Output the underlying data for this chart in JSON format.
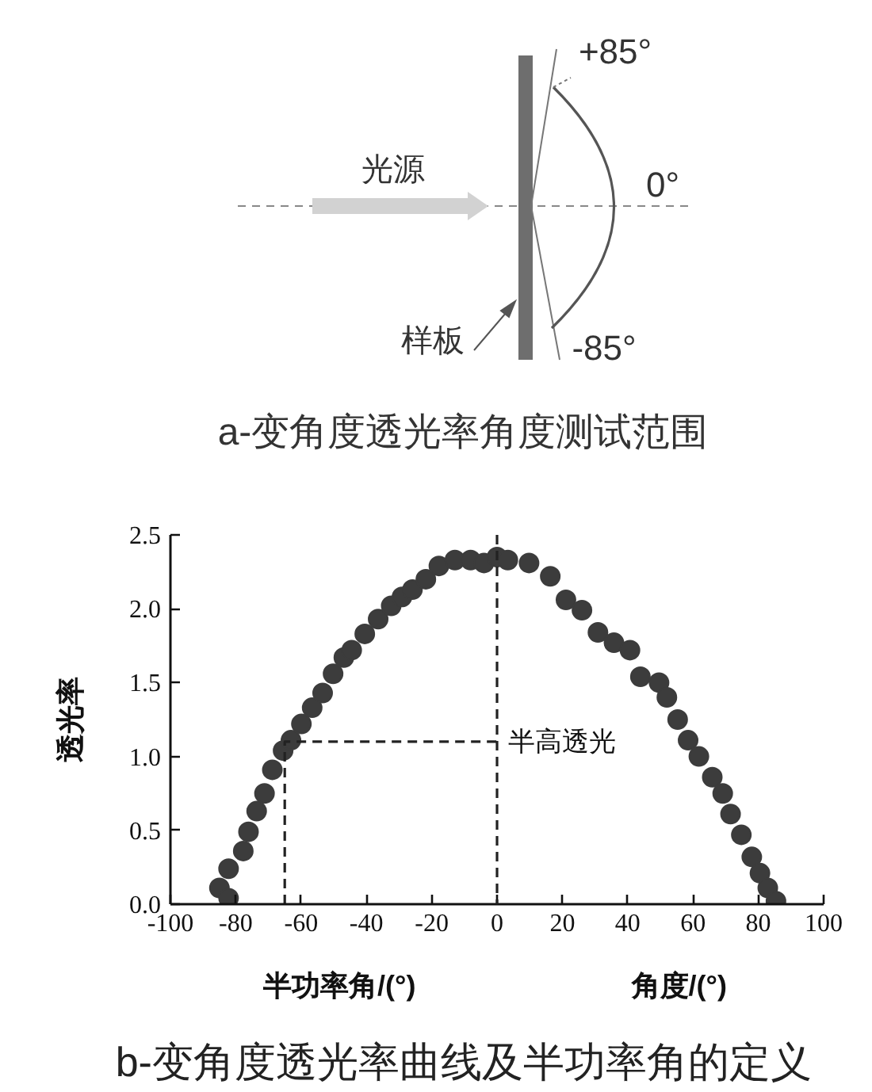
{
  "chart_data": [
    {
      "type": "other",
      "title": "a-变角度透光率角度测试范围",
      "annotations": [
        "光源",
        "样板",
        "+85°",
        "0°",
        "-85°"
      ]
    },
    {
      "type": "scatter",
      "title": "b-变角度透光率曲线及半功率角的定义",
      "xlabel": "角度/(°)",
      "ylabel": "透光率",
      "marker": "circle",
      "xlim": [
        -100,
        100
      ],
      "xticks": [
        -100,
        -80,
        -60,
        -40,
        -20,
        0,
        20,
        40,
        60,
        80,
        100
      ],
      "ylim": [
        0,
        2.5
      ],
      "yticks": [
        {
          "value": 0,
          "label": "0.0"
        },
        0.5,
        {
          "value": 1,
          "label": "1.0"
        },
        1.5,
        {
          "value": 2,
          "label": "2.0"
        },
        2.5
      ],
      "series": [
        {
          "type": "scatter",
          "color": "#3c3c3c",
          "x": [
            -85.0,
            -82.2,
            -82.2,
            -77.7,
            -76.1,
            -73.6,
            -71.2,
            -68.8,
            -65.5,
            -63.1,
            -59.9,
            -56.6,
            -53.4,
            -50.2,
            -46.9,
            -44.5,
            -40.5,
            -36.4,
            -32.4,
            -29.1,
            -25.9,
            -21.8,
            -17.8,
            -12.9,
            -8.1,
            -4.0,
            0,
            3.3,
            9.8,
            16.3,
            21.1,
            26.0,
            30.9,
            35.8,
            40.7,
            43.9,
            49.6,
            52.0,
            55.3,
            58.5,
            61.8,
            65.9,
            69.1,
            71.5,
            74.8,
            78.0,
            80.5,
            82.9,
            85.4
          ],
          "values": [
            0.11,
            0.04,
            0.24,
            0.36,
            0.49,
            0.63,
            0.75,
            0.91,
            1.04,
            1.11,
            1.22,
            1.33,
            1.43,
            1.56,
            1.67,
            1.72,
            1.83,
            1.93,
            2.02,
            2.08,
            2.13,
            2.2,
            2.29,
            2.33,
            2.33,
            2.31,
            2.35,
            2.33,
            2.31,
            2.22,
            2.06,
            1.99,
            1.84,
            1.77,
            1.72,
            1.54,
            1.5,
            1.4,
            1.25,
            1.11,
            1.0,
            0.86,
            0.75,
            0.61,
            0.47,
            0.32,
            0.21,
            0.11,
            0.02
          ]
        },
        {
          "type": "line",
          "color": "#222222",
          "line_style": "dashed",
          "marker": "none",
          "x": [
            -65,
            -65,
            0
          ],
          "values": [
            0,
            1.1,
            1.1
          ]
        }
      ],
      "ref_lines": [
        {
          "axis": "x",
          "value": 0,
          "color": "#222222",
          "line_style": "dashed"
        }
      ],
      "annotations": [
        {
          "text": "半高透光",
          "x": 0,
          "y": 1.1
        },
        "半功率角/(°)"
      ]
    }
  ]
}
